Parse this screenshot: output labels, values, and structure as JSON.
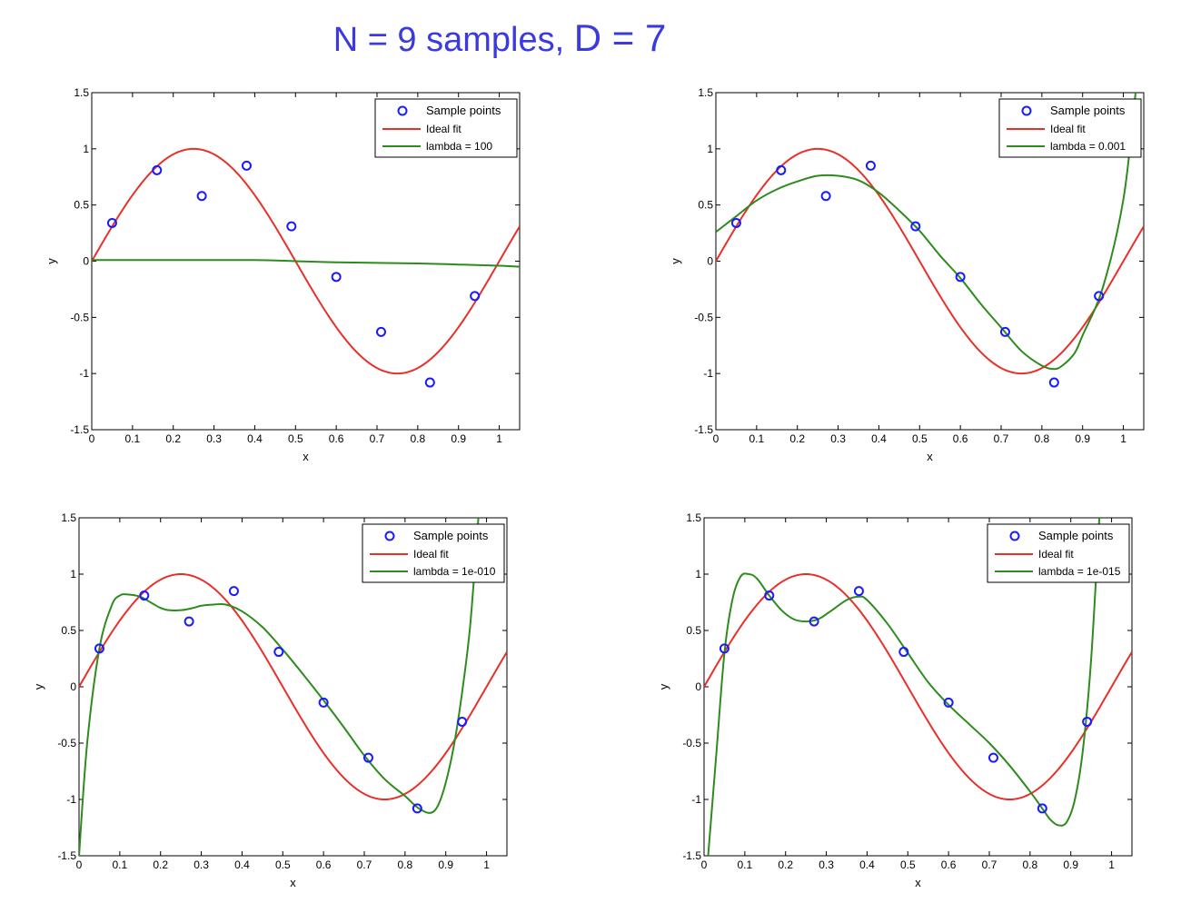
{
  "title": {
    "part1": "N = 9 samples,",
    "part2": "D = 7"
  },
  "colors": {
    "title": "#3a3adf",
    "samples": "#1a1aff",
    "ideal": "#e8302a",
    "fit": "#2e8b1e"
  },
  "chart_data": [
    {
      "type": "line",
      "xlabel": "x",
      "ylabel": "y",
      "xlim": [
        0,
        1.05
      ],
      "ylim": [
        -1.5,
        1.5
      ],
      "xticks": [
        "0",
        "0.1",
        "0.2",
        "0.3",
        "0.4",
        "0.5",
        "0.6",
        "0.7",
        "0.8",
        "0.9",
        "1"
      ],
      "yticks": [
        "-1.5",
        "-1",
        "-0.5",
        "0",
        "0.5",
        "1",
        "1.5"
      ],
      "legend_position": "top-right",
      "legend": [
        "Sample points",
        "Ideal fit",
        "lambda = 100"
      ],
      "samples": {
        "x": [
          0.05,
          0.16,
          0.27,
          0.38,
          0.49,
          0.6,
          0.71,
          0.83,
          0.94
        ],
        "y": [
          0.34,
          0.81,
          0.58,
          0.85,
          0.31,
          -0.14,
          -0.63,
          -1.08,
          -0.31
        ]
      },
      "fit": {
        "x": [
          0,
          0.2,
          0.4,
          0.5,
          0.6,
          0.8,
          0.9,
          1.0,
          1.05
        ],
        "y": [
          0.01,
          0.01,
          0.01,
          0.0,
          -0.01,
          -0.02,
          -0.03,
          -0.04,
          -0.05
        ]
      }
    },
    {
      "type": "line",
      "xlabel": "x",
      "ylabel": "y",
      "xlim": [
        0,
        1.05
      ],
      "ylim": [
        -1.5,
        1.5
      ],
      "xticks": [
        "0",
        "0.1",
        "0.2",
        "0.3",
        "0.4",
        "0.5",
        "0.6",
        "0.7",
        "0.8",
        "0.9",
        "1"
      ],
      "yticks": [
        "-1.5",
        "-1",
        "-0.5",
        "0",
        "0.5",
        "1",
        "1.5"
      ],
      "legend_position": "top-right",
      "legend": [
        "Sample points",
        "Ideal fit",
        "lambda = 0.001"
      ],
      "samples": {
        "x": [
          0.05,
          0.16,
          0.27,
          0.38,
          0.49,
          0.6,
          0.71,
          0.83,
          0.94
        ],
        "y": [
          0.34,
          0.81,
          0.58,
          0.85,
          0.31,
          -0.14,
          -0.63,
          -1.08,
          -0.31
        ]
      },
      "fit": {
        "x": [
          0,
          0.05,
          0.1,
          0.15,
          0.2,
          0.25,
          0.3,
          0.35,
          0.4,
          0.45,
          0.5,
          0.55,
          0.6,
          0.65,
          0.7,
          0.75,
          0.8,
          0.83,
          0.85,
          0.88,
          0.9,
          0.95,
          1.0,
          1.03
        ],
        "y": [
          0.26,
          0.4,
          0.54,
          0.64,
          0.71,
          0.76,
          0.76,
          0.72,
          0.61,
          0.45,
          0.27,
          0.05,
          -0.15,
          -0.38,
          -0.59,
          -0.8,
          -0.93,
          -0.96,
          -0.93,
          -0.82,
          -0.66,
          -0.23,
          0.55,
          1.5
        ]
      }
    },
    {
      "type": "line",
      "xlabel": "x",
      "ylabel": "y",
      "xlim": [
        0,
        1.05
      ],
      "ylim": [
        -1.5,
        1.5
      ],
      "xticks": [
        "0",
        "0.1",
        "0.2",
        "0.3",
        "0.4",
        "0.5",
        "0.6",
        "0.7",
        "0.8",
        "0.9",
        "1"
      ],
      "yticks": [
        "-1.5",
        "-1",
        "-0.5",
        "0",
        "0.5",
        "1",
        "1.5"
      ],
      "legend_position": "top-right",
      "legend": [
        "Sample points",
        "Ideal fit",
        "lambda = 1e-010"
      ],
      "samples": {
        "x": [
          0.05,
          0.16,
          0.27,
          0.38,
          0.49,
          0.6,
          0.71,
          0.83,
          0.94
        ],
        "y": [
          0.34,
          0.81,
          0.58,
          0.85,
          0.31,
          -0.14,
          -0.63,
          -1.08,
          -0.31
        ]
      },
      "fit": {
        "x": [
          0.0,
          0.02,
          0.05,
          0.08,
          0.1,
          0.12,
          0.15,
          0.18,
          0.2,
          0.22,
          0.25,
          0.28,
          0.3,
          0.33,
          0.36,
          0.4,
          0.45,
          0.5,
          0.55,
          0.6,
          0.65,
          0.7,
          0.75,
          0.8,
          0.83,
          0.86,
          0.88,
          0.9,
          0.92,
          0.94,
          0.96,
          0.98
        ],
        "y": [
          -1.5,
          -0.5,
          0.34,
          0.72,
          0.81,
          0.82,
          0.8,
          0.74,
          0.7,
          0.68,
          0.68,
          0.7,
          0.72,
          0.73,
          0.73,
          0.67,
          0.53,
          0.33,
          0.11,
          -0.12,
          -0.36,
          -0.61,
          -0.82,
          -0.97,
          -1.07,
          -1.12,
          -1.06,
          -0.85,
          -0.52,
          -0.05,
          0.55,
          1.5
        ]
      }
    },
    {
      "type": "line",
      "xlabel": "x",
      "ylabel": "y",
      "xlim": [
        0,
        1.05
      ],
      "ylim": [
        -1.5,
        1.5
      ],
      "xticks": [
        "0",
        "0.1",
        "0.2",
        "0.3",
        "0.4",
        "0.5",
        "0.6",
        "0.7",
        "0.8",
        "0.9",
        "1"
      ],
      "yticks": [
        "-1.5",
        "-1",
        "-0.5",
        "0",
        "0.5",
        "1",
        "1.5"
      ],
      "legend_position": "top-right",
      "legend": [
        "Sample points",
        "Ideal fit",
        "lambda = 1e-015"
      ],
      "samples": {
        "x": [
          0.05,
          0.16,
          0.27,
          0.38,
          0.49,
          0.6,
          0.71,
          0.83,
          0.94
        ],
        "y": [
          0.34,
          0.81,
          0.58,
          0.85,
          0.31,
          -0.14,
          -0.63,
          -1.08,
          -0.31
        ]
      },
      "fit": {
        "x": [
          0.01,
          0.03,
          0.05,
          0.07,
          0.09,
          0.11,
          0.13,
          0.16,
          0.19,
          0.22,
          0.25,
          0.28,
          0.31,
          0.35,
          0.38,
          0.4,
          0.45,
          0.5,
          0.55,
          0.6,
          0.65,
          0.7,
          0.75,
          0.8,
          0.83,
          0.85,
          0.87,
          0.89,
          0.91,
          0.93,
          0.95,
          0.97
        ],
        "y": [
          -1.5,
          -0.6,
          0.3,
          0.78,
          0.98,
          1.0,
          0.96,
          0.81,
          0.68,
          0.6,
          0.58,
          0.6,
          0.67,
          0.77,
          0.8,
          0.77,
          0.56,
          0.3,
          0.04,
          -0.16,
          -0.33,
          -0.5,
          -0.7,
          -0.93,
          -1.08,
          -1.18,
          -1.23,
          -1.2,
          -1.0,
          -0.55,
          0.25,
          1.5
        ]
      }
    }
  ]
}
